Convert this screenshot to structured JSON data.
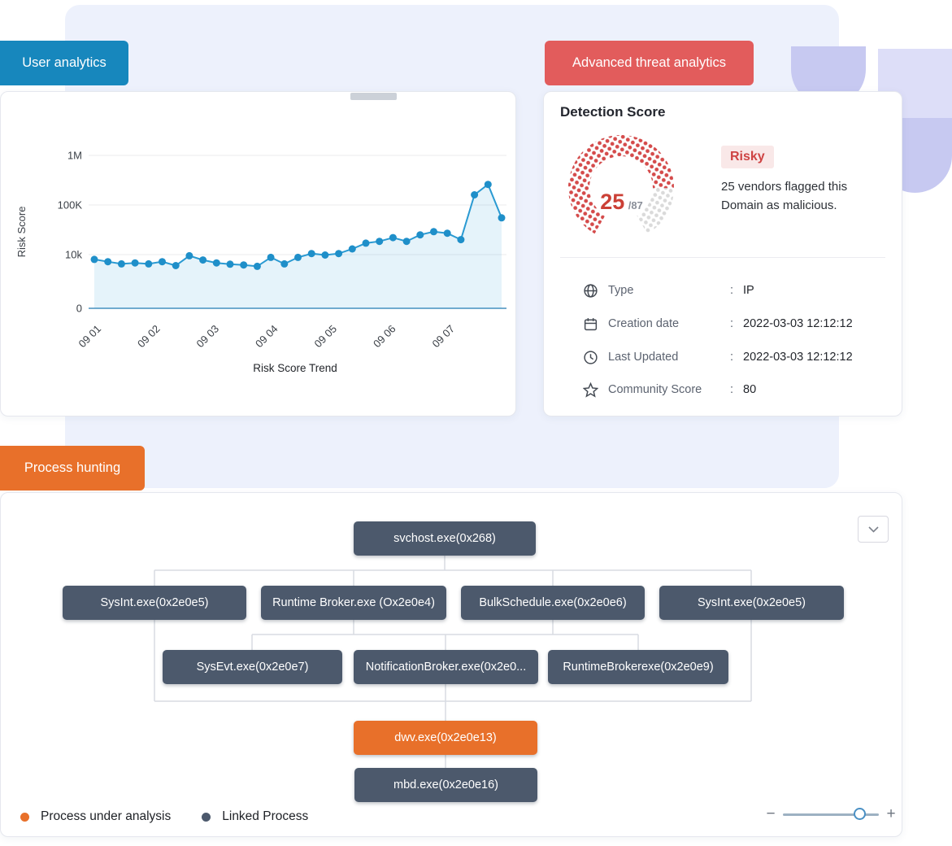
{
  "colors": {
    "accent_blue": "#1787bd",
    "accent_red": "#e25c5c",
    "accent_orange": "#e8702a",
    "node_slate": "#4c596c",
    "risky_red": "#ce4343",
    "chart_line": "#2a9ad2",
    "background_panel": "#edf1fc"
  },
  "badges": {
    "user_analytics": "User analytics",
    "advanced_threat_analytics": "Advanced threat analytics",
    "process_hunting": "Process hunting"
  },
  "chart_data": {
    "type": "area",
    "title": "Risk Score Trend",
    "ylabel": "Risk Score",
    "xlabel": "Risk Score Trend",
    "y_scale": "log",
    "grid": true,
    "legend_position": "none",
    "y_ticks": [
      {
        "value": 1000000,
        "label": "1M"
      },
      {
        "value": 100000,
        "label": "100K"
      },
      {
        "value": 10000,
        "label": "10k"
      },
      {
        "value": 0,
        "label": "0"
      }
    ],
    "x_ticks": [
      "09 01",
      "09 02",
      "09 03",
      "09 04",
      "09 05",
      "09 06",
      "09 07"
    ],
    "values": [
      8000,
      7200,
      6500,
      6800,
      6500,
      7200,
      6000,
      9500,
      7800,
      6800,
      6400,
      6200,
      5800,
      8800,
      6500,
      8800,
      10500,
      9800,
      10500,
      13000,
      17000,
      18500,
      22000,
      18500,
      25000,
      29000,
      27000,
      20000,
      160000,
      260000,
      55000
    ]
  },
  "detection": {
    "title": "Detection Score",
    "score": "25",
    "score_max": "/87",
    "gauge_fill_ratio": 0.8,
    "risk_label": "Risky",
    "description": "25 vendors flagged this Domain as malicious.",
    "separator": ":",
    "rows": [
      {
        "icon": "globe-icon",
        "label": "Type",
        "value": "IP"
      },
      {
        "icon": "calendar-icon",
        "label": "Creation date",
        "value": "2022-03-03 12:12:12"
      },
      {
        "icon": "clock-icon",
        "label": "Last Updated",
        "value": "2022-03-03 12:12:12"
      },
      {
        "icon": "star-icon",
        "label": "Community Score",
        "value": "80"
      }
    ]
  },
  "process_tree": {
    "root": "svchost.exe(0x268)",
    "level2": [
      "SysInt.exe(0x2e0e5)",
      "Runtime Broker.exe (Ox2e0e4)",
      "BulkSchedule.exe(0x2e0e6)",
      "SysInt.exe(0x2e0e5)"
    ],
    "level3": [
      "SysEvt.exe(0x2e0e7)",
      "NotificationBroker.exe(0x2e0...",
      "RuntimeBrokerexe(0x2e0e9)"
    ],
    "analysis_node": "dwv.exe(0x2e0e13)",
    "child_node": "mbd.exe(0x2e0e16)",
    "legend": [
      {
        "label": "Process under analysis",
        "color": "#e8702a"
      },
      {
        "label": "Linked Process",
        "color": "#4c596c"
      }
    ],
    "zoom_minus": "−",
    "zoom_plus": "+"
  }
}
